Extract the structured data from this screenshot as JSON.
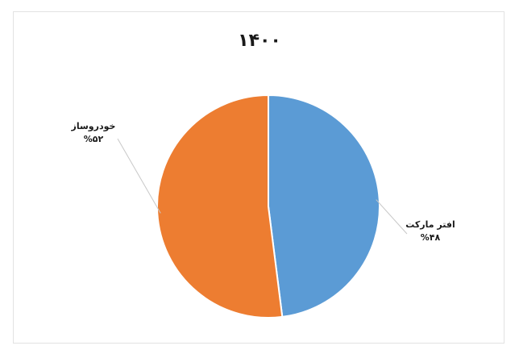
{
  "chart_data": {
    "type": "pie",
    "title": "۱۴۰۰",
    "categories": [
      "افتر مارکت",
      "خودروساز"
    ],
    "values": [
      48,
      52
    ],
    "value_labels": [
      "%۴۸",
      "%۵۲"
    ],
    "colors": [
      "#5b9bd5",
      "#ed7d31"
    ],
    "legend": "none"
  }
}
